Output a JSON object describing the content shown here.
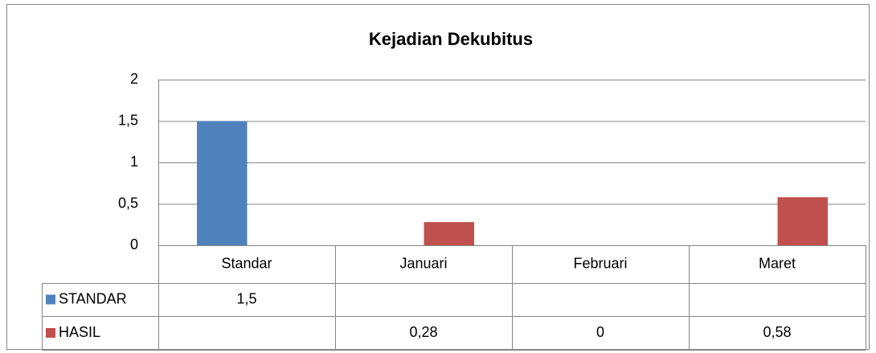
{
  "chart_data": {
    "type": "bar",
    "title": "Kejadian Dekubitus",
    "categories": [
      "Standar",
      "Januari",
      "Februari",
      "Maret"
    ],
    "series": [
      {
        "name": "STANDAR",
        "color": "#4f81bd",
        "values": [
          1.5,
          null,
          null,
          null
        ],
        "value_labels": [
          "1,5",
          null,
          null,
          null
        ]
      },
      {
        "name": "HASIL",
        "color": "#c0504d",
        "values": [
          null,
          0.28,
          0,
          0.58
        ],
        "value_labels": [
          null,
          "0,28",
          "0",
          "0,58"
        ]
      }
    ],
    "ylim": [
      0,
      2
    ],
    "yticks": [
      0,
      {
        "value": 0.5,
        "label": "0,5"
      },
      1,
      {
        "value": 1.5,
        "label": "1,5"
      },
      2
    ],
    "grid": true
  }
}
